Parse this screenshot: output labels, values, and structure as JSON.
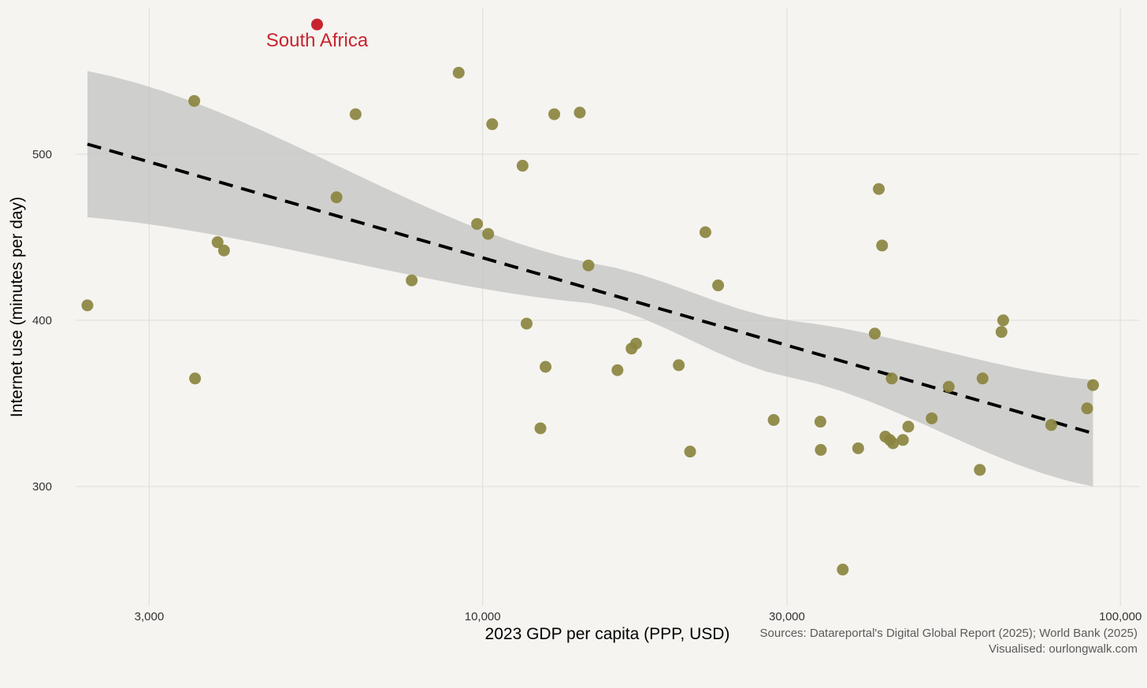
{
  "chart_data": {
    "type": "scatter",
    "title": "",
    "xlabel": "2023 GDP per capita (PPP, USD)",
    "ylabel": "Internet use (minutes per day)",
    "x_scale": "log10",
    "xlim": [
      2300,
      107000
    ],
    "ylim": [
      228,
      588
    ],
    "x_ticks": [
      3000,
      10000,
      30000,
      100000
    ],
    "x_tick_labels": [
      "3,000",
      "10,000",
      "30,000",
      "100,000"
    ],
    "y_ticks": [
      300,
      400,
      500
    ],
    "y_tick_labels": [
      "300",
      "400",
      "500"
    ],
    "grid": true,
    "point_color": "#8b8440",
    "highlight_color": "#c8242f",
    "highlight": {
      "label": "South Africa",
      "x": 5500,
      "y": 578
    },
    "points": [
      {
        "x": 2400,
        "y": 409
      },
      {
        "x": 3530,
        "y": 532
      },
      {
        "x": 3540,
        "y": 365
      },
      {
        "x": 3840,
        "y": 447
      },
      {
        "x": 3930,
        "y": 442
      },
      {
        "x": 5900,
        "y": 474
      },
      {
        "x": 6320,
        "y": 524
      },
      {
        "x": 7740,
        "y": 424
      },
      {
        "x": 9170,
        "y": 549
      },
      {
        "x": 9800,
        "y": 458
      },
      {
        "x": 10200,
        "y": 452
      },
      {
        "x": 10350,
        "y": 518
      },
      {
        "x": 11550,
        "y": 493
      },
      {
        "x": 11720,
        "y": 398
      },
      {
        "x": 12320,
        "y": 335
      },
      {
        "x": 12550,
        "y": 372
      },
      {
        "x": 12950,
        "y": 524
      },
      {
        "x": 14200,
        "y": 525
      },
      {
        "x": 14650,
        "y": 433
      },
      {
        "x": 16270,
        "y": 370
      },
      {
        "x": 17120,
        "y": 383
      },
      {
        "x": 17400,
        "y": 386
      },
      {
        "x": 20300,
        "y": 373
      },
      {
        "x": 21150,
        "y": 321
      },
      {
        "x": 22350,
        "y": 453
      },
      {
        "x": 23400,
        "y": 421
      },
      {
        "x": 28600,
        "y": 340
      },
      {
        "x": 33850,
        "y": 339
      },
      {
        "x": 33900,
        "y": 322
      },
      {
        "x": 36700,
        "y": 250
      },
      {
        "x": 38800,
        "y": 323
      },
      {
        "x": 41200,
        "y": 392
      },
      {
        "x": 41800,
        "y": 479
      },
      {
        "x": 42300,
        "y": 445
      },
      {
        "x": 42800,
        "y": 330
      },
      {
        "x": 43500,
        "y": 328
      },
      {
        "x": 43800,
        "y": 365
      },
      {
        "x": 44000,
        "y": 326
      },
      {
        "x": 45600,
        "y": 328
      },
      {
        "x": 46500,
        "y": 336
      },
      {
        "x": 50600,
        "y": 341
      },
      {
        "x": 53800,
        "y": 360
      },
      {
        "x": 60200,
        "y": 310
      },
      {
        "x": 60800,
        "y": 365
      },
      {
        "x": 65100,
        "y": 393
      },
      {
        "x": 65500,
        "y": 400
      },
      {
        "x": 77900,
        "y": 337
      },
      {
        "x": 88700,
        "y": 347
      },
      {
        "x": 90600,
        "y": 361
      }
    ],
    "trend_line": {
      "style": "dashed",
      "x": [
        2400,
        90600
      ],
      "y": [
        506,
        332
      ]
    },
    "confidence_band": {
      "x": [
        2400,
        15000,
        30000,
        90600
      ],
      "upper": [
        550,
        434,
        400,
        364
      ],
      "lower": [
        462,
        410,
        366,
        300
      ]
    },
    "annotations": [
      "South Africa"
    ]
  },
  "caption": {
    "sources": "Sources: Datareportal's Digital Global Report (2025); World Bank (2025) ",
    "credit": "Visualised: ourlongwalk.com"
  }
}
